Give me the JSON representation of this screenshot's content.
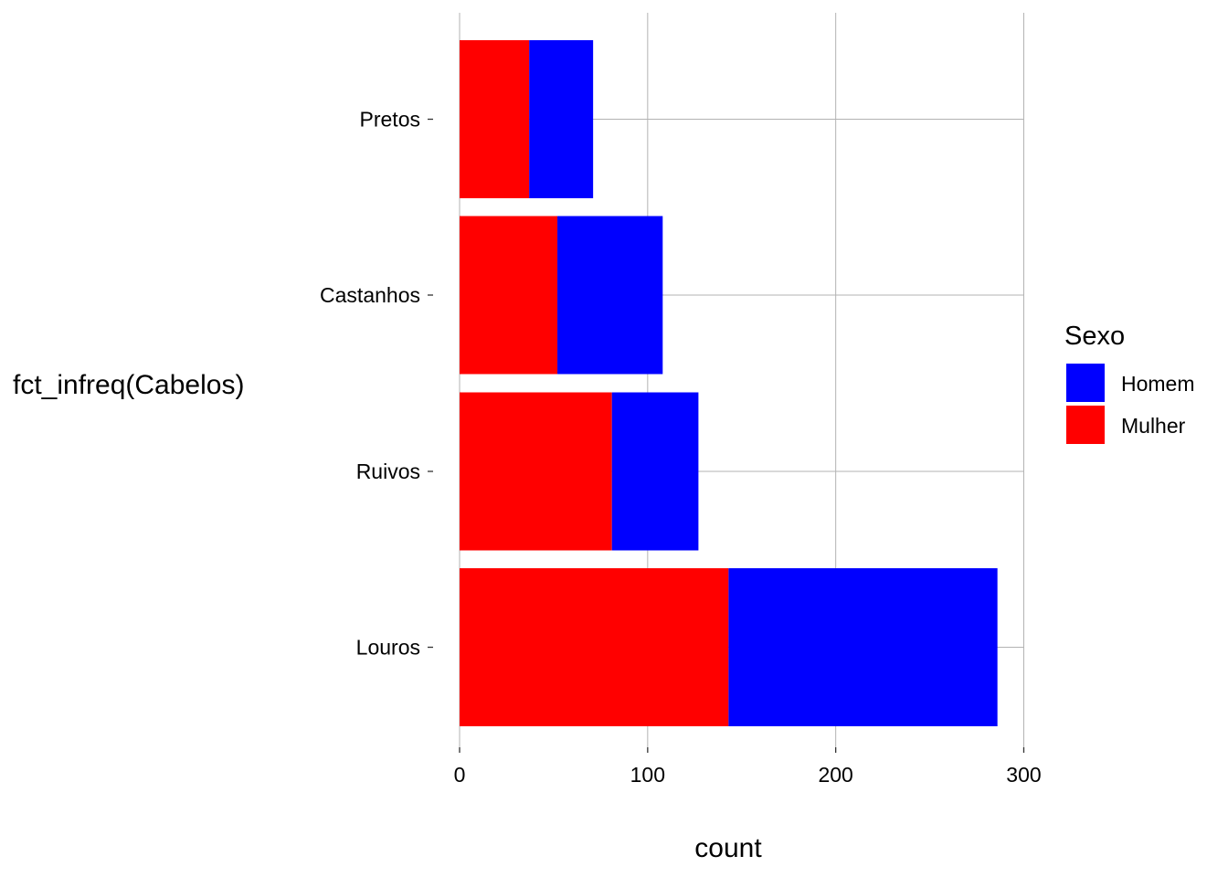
{
  "chart_data": {
    "type": "bar",
    "orientation": "horizontal",
    "stacked": true,
    "categories": [
      "Louros",
      "Ruivos",
      "Castanhos",
      "Pretos"
    ],
    "series": [
      {
        "name": "Mulher",
        "color": "#ff0000",
        "values": [
          143,
          81,
          52,
          37
        ]
      },
      {
        "name": "Homem",
        "color": "#0000ff",
        "values": [
          143,
          46,
          56,
          34
        ]
      }
    ],
    "xlabel": "count",
    "ylabel": "fct_infreq(Cabelos)",
    "xticks": [
      "0",
      "100",
      "200",
      "300"
    ],
    "xlim": [
      0,
      300
    ],
    "grid": true,
    "legend": {
      "title": "Sexo",
      "position": "right",
      "entries": [
        {
          "label": "Homem",
          "color": "#0000ff"
        },
        {
          "label": "Mulher",
          "color": "#ff0000"
        }
      ]
    }
  }
}
